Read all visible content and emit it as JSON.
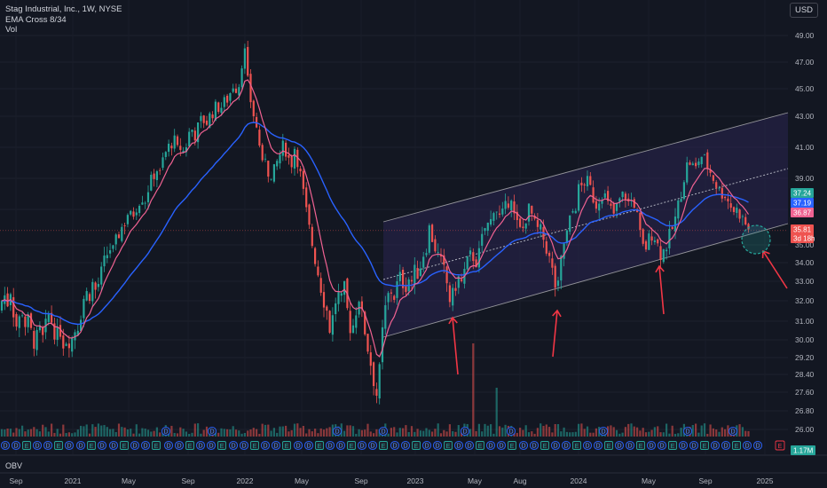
{
  "header": {
    "symbol_line": "Stag Industrial, Inc., 1W, NYSE",
    "indicator_1": "EMA Cross 8/34",
    "indicator_2": "Vol",
    "currency": "USD"
  },
  "obv_pane": {
    "label": "OBV",
    "value": "1.17M"
  },
  "colors": {
    "background": "#131722",
    "up": "#26a69a",
    "down": "#ef5350",
    "ema_fast": "#f06292",
    "ema_slow": "#2962ff",
    "channel": "#c8c8c8",
    "arrow": "#f23645",
    "channel_fill": "#2a2550"
  },
  "chart_data": {
    "type": "candlestick",
    "title": "Stag Industrial, Inc., 1W, NYSE",
    "ylim": [
      25.5,
      50
    ],
    "y_ticks": [
      "49.00",
      "47.00",
      "45.00",
      "43.00",
      "41.00",
      "39.00",
      "37.00",
      "35.00",
      "34.00",
      "33.00",
      "32.00",
      "31.00",
      "30.00",
      "29.20",
      "28.40",
      "27.60",
      "26.80",
      "26.00"
    ],
    "x_ticks": [
      "Sep",
      "2021",
      "May",
      "Sep",
      "2022",
      "May",
      "Sep",
      "2023",
      "May",
      "Aug",
      "2024",
      "May",
      "Sep",
      "2025"
    ],
    "price_labels": [
      {
        "text": "37.24",
        "color": "#26a69a"
      },
      {
        "text": "37.19",
        "color": "#2962ff"
      },
      {
        "text": "36.87",
        "color": "#f06292"
      },
      {
        "text": "35.81",
        "color": "#ef5350"
      },
      {
        "text": "3d 18h",
        "color": "#ef5350"
      }
    ],
    "last_close": 35.81,
    "close_series": [
      {
        "t": 0,
        "c": 31.5
      },
      {
        "t": 4,
        "c": 32.5
      },
      {
        "t": 8,
        "c": 31.8
      },
      {
        "t": 12,
        "c": 32.6
      },
      {
        "t": 16,
        "c": 31.2
      },
      {
        "t": 20,
        "c": 30.5
      },
      {
        "t": 24,
        "c": 31.8
      },
      {
        "t": 28,
        "c": 30.8
      },
      {
        "t": 32,
        "c": 31.0
      },
      {
        "t": 36,
        "c": 30.2
      },
      {
        "t": 40,
        "c": 29.8
      },
      {
        "t": 44,
        "c": 30.6
      },
      {
        "t": 48,
        "c": 30.0
      },
      {
        "t": 52,
        "c": 30.8
      },
      {
        "t": 56,
        "c": 31.5
      },
      {
        "t": 60,
        "c": 30.6
      },
      {
        "t": 64,
        "c": 30.2
      },
      {
        "t": 68,
        "c": 30.5
      },
      {
        "t": 72,
        "c": 29.8
      },
      {
        "t": 76,
        "c": 30.2
      },
      {
        "t": 80,
        "c": 29.9
      },
      {
        "t": 84,
        "c": 30.5
      },
      {
        "t": 88,
        "c": 30.8
      },
      {
        "t": 92,
        "c": 31.6
      },
      {
        "t": 96,
        "c": 32.5
      },
      {
        "t": 100,
        "c": 32.2
      },
      {
        "t": 104,
        "c": 32.9
      },
      {
        "t": 108,
        "c": 32.5
      },
      {
        "t": 112,
        "c": 33.0
      },
      {
        "t": 116,
        "c": 33.8
      },
      {
        "t": 120,
        "c": 34.4
      },
      {
        "t": 124,
        "c": 34.8
      },
      {
        "t": 128,
        "c": 34.6
      },
      {
        "t": 132,
        "c": 35.4
      },
      {
        "t": 136,
        "c": 35.9
      },
      {
        "t": 140,
        "c": 36.2
      },
      {
        "t": 144,
        "c": 36.8
      },
      {
        "t": 148,
        "c": 36.5
      },
      {
        "t": 152,
        "c": 37.0
      },
      {
        "t": 156,
        "c": 37.5
      },
      {
        "t": 160,
        "c": 37.8
      },
      {
        "t": 164,
        "c": 37.6
      },
      {
        "t": 168,
        "c": 38.6
      },
      {
        "t": 172,
        "c": 39.0
      },
      {
        "t": 176,
        "c": 39.7
      },
      {
        "t": 180,
        "c": 39.2
      },
      {
        "t": 184,
        "c": 40.3
      },
      {
        "t": 188,
        "c": 40.8
      },
      {
        "t": 192,
        "c": 41.2
      },
      {
        "t": 196,
        "c": 41.5
      },
      {
        "t": 200,
        "c": 40.8
      },
      {
        "t": 204,
        "c": 41.0
      },
      {
        "t": 208,
        "c": 40.6
      },
      {
        "t": 212,
        "c": 41.8
      },
      {
        "t": 216,
        "c": 42.2
      },
      {
        "t": 220,
        "c": 41.8
      },
      {
        "t": 224,
        "c": 42.4
      },
      {
        "t": 228,
        "c": 42.9
      },
      {
        "t": 232,
        "c": 42.5
      },
      {
        "t": 236,
        "c": 43.0
      },
      {
        "t": 240,
        "c": 43.3
      },
      {
        "t": 244,
        "c": 43.8
      },
      {
        "t": 248,
        "c": 43.5
      },
      {
        "t": 252,
        "c": 44.0
      },
      {
        "t": 256,
        "c": 44.2
      },
      {
        "t": 260,
        "c": 44.8
      },
      {
        "t": 264,
        "c": 45.5
      },
      {
        "t": 268,
        "c": 44.6
      },
      {
        "t": 272,
        "c": 46.8
      },
      {
        "t": 276,
        "c": 47.8
      },
      {
        "t": 280,
        "c": 45.0
      },
      {
        "t": 284,
        "c": 43.6
      },
      {
        "t": 288,
        "c": 42.5
      },
      {
        "t": 292,
        "c": 41.4
      },
      {
        "t": 296,
        "c": 39.6
      },
      {
        "t": 300,
        "c": 40.8
      },
      {
        "t": 304,
        "c": 38.5
      },
      {
        "t": 308,
        "c": 39.3
      },
      {
        "t": 312,
        "c": 40.0
      },
      {
        "t": 316,
        "c": 40.6
      },
      {
        "t": 320,
        "c": 41.2
      },
      {
        "t": 324,
        "c": 40.5
      },
      {
        "t": 328,
        "c": 39.8
      },
      {
        "t": 332,
        "c": 41.0
      },
      {
        "t": 336,
        "c": 40.0
      },
      {
        "t": 340,
        "c": 38.8
      },
      {
        "t": 344,
        "c": 37.2
      },
      {
        "t": 348,
        "c": 36.0
      },
      {
        "t": 352,
        "c": 35.0
      },
      {
        "t": 356,
        "c": 34.0
      },
      {
        "t": 360,
        "c": 33.1
      },
      {
        "t": 364,
        "c": 32.2
      },
      {
        "t": 368,
        "c": 31.6
      },
      {
        "t": 372,
        "c": 30.5
      },
      {
        "t": 376,
        "c": 31.4
      },
      {
        "t": 380,
        "c": 32.5
      },
      {
        "t": 384,
        "c": 31.8
      },
      {
        "t": 388,
        "c": 32.6
      },
      {
        "t": 392,
        "c": 31.3
      },
      {
        "t": 396,
        "c": 30.4
      },
      {
        "t": 400,
        "c": 31.2
      },
      {
        "t": 404,
        "c": 32.4
      },
      {
        "t": 408,
        "c": 31.2
      },
      {
        "t": 412,
        "c": 30.3
      },
      {
        "t": 416,
        "c": 29.3
      },
      {
        "t": 420,
        "c": 28.5
      },
      {
        "t": 424,
        "c": 27.4
      },
      {
        "t": 428,
        "c": 28.6
      },
      {
        "t": 432,
        "c": 31.0
      },
      {
        "t": 436,
        "c": 32.0
      },
      {
        "t": 440,
        "c": 32.6
      },
      {
        "t": 444,
        "c": 32.2
      },
      {
        "t": 448,
        "c": 32.9
      },
      {
        "t": 452,
        "c": 33.3
      },
      {
        "t": 456,
        "c": 32.6
      },
      {
        "t": 460,
        "c": 33.2
      },
      {
        "t": 464,
        "c": 33.0
      },
      {
        "t": 468,
        "c": 33.6
      },
      {
        "t": 472,
        "c": 33.4
      },
      {
        "t": 476,
        "c": 34.4
      },
      {
        "t": 480,
        "c": 34.8
      },
      {
        "t": 484,
        "c": 36.0
      },
      {
        "t": 488,
        "c": 35.2
      },
      {
        "t": 492,
        "c": 34.6
      },
      {
        "t": 496,
        "c": 34.1
      },
      {
        "t": 500,
        "c": 33.6
      },
      {
        "t": 504,
        "c": 32.8
      },
      {
        "t": 508,
        "c": 31.8
      },
      {
        "t": 512,
        "c": 32.6
      },
      {
        "t": 516,
        "c": 33.2
      },
      {
        "t": 520,
        "c": 32.9
      },
      {
        "t": 524,
        "c": 33.6
      },
      {
        "t": 528,
        "c": 34.2
      },
      {
        "t": 532,
        "c": 34.5
      },
      {
        "t": 536,
        "c": 34.0
      },
      {
        "t": 540,
        "c": 34.5
      },
      {
        "t": 544,
        "c": 35.5
      },
      {
        "t": 548,
        "c": 36.2
      },
      {
        "t": 552,
        "c": 36.0
      },
      {
        "t": 556,
        "c": 37.2
      },
      {
        "t": 560,
        "c": 37.0
      },
      {
        "t": 564,
        "c": 36.4
      },
      {
        "t": 568,
        "c": 36.9
      },
      {
        "t": 572,
        "c": 37.4
      },
      {
        "t": 576,
        "c": 38.0
      },
      {
        "t": 580,
        "c": 36.4
      },
      {
        "t": 584,
        "c": 36.0
      },
      {
        "t": 588,
        "c": 35.6
      },
      {
        "t": 592,
        "c": 36.5
      },
      {
        "t": 596,
        "c": 37.0
      },
      {
        "t": 600,
        "c": 36.6
      },
      {
        "t": 604,
        "c": 35.8
      },
      {
        "t": 608,
        "c": 35.9
      },
      {
        "t": 612,
        "c": 35.4
      },
      {
        "t": 616,
        "c": 34.8
      },
      {
        "t": 620,
        "c": 34.0
      },
      {
        "t": 624,
        "c": 33.2
      },
      {
        "t": 628,
        "c": 32.2
      },
      {
        "t": 632,
        "c": 34.0
      },
      {
        "t": 636,
        "c": 35.2
      },
      {
        "t": 640,
        "c": 35.8
      },
      {
        "t": 644,
        "c": 36.8
      },
      {
        "t": 648,
        "c": 37.0
      },
      {
        "t": 652,
        "c": 38.3
      },
      {
        "t": 656,
        "c": 38.5
      },
      {
        "t": 660,
        "c": 38.9
      },
      {
        "t": 664,
        "c": 38.6
      },
      {
        "t": 668,
        "c": 37.8
      },
      {
        "t": 672,
        "c": 37.3
      },
      {
        "t": 676,
        "c": 37.8
      },
      {
        "t": 680,
        "c": 38.2
      },
      {
        "t": 684,
        "c": 37.4
      },
      {
        "t": 688,
        "c": 37.0
      },
      {
        "t": 692,
        "c": 36.7
      },
      {
        "t": 696,
        "c": 37.3
      },
      {
        "t": 700,
        "c": 37.8
      },
      {
        "t": 704,
        "c": 38.0
      },
      {
        "t": 708,
        "c": 37.4
      },
      {
        "t": 712,
        "c": 37.6
      },
      {
        "t": 716,
        "c": 37.3
      },
      {
        "t": 720,
        "c": 35.9
      },
      {
        "t": 724,
        "c": 34.8
      },
      {
        "t": 728,
        "c": 34.9
      },
      {
        "t": 732,
        "c": 35.4
      },
      {
        "t": 736,
        "c": 35.8
      },
      {
        "t": 740,
        "c": 35.2
      },
      {
        "t": 744,
        "c": 34.5
      },
      {
        "t": 748,
        "c": 34.7
      },
      {
        "t": 752,
        "c": 35.1
      },
      {
        "t": 756,
        "c": 35.7
      },
      {
        "t": 760,
        "c": 36.2
      },
      {
        "t": 764,
        "c": 37.2
      },
      {
        "t": 768,
        "c": 38.2
      },
      {
        "t": 772,
        "c": 39.4
      },
      {
        "t": 776,
        "c": 40.2
      },
      {
        "t": 780,
        "c": 39.8
      },
      {
        "t": 784,
        "c": 39.6
      },
      {
        "t": 788,
        "c": 40.3
      },
      {
        "t": 792,
        "c": 40.5
      },
      {
        "t": 796,
        "c": 39.9
      },
      {
        "t": 800,
        "c": 39.5
      },
      {
        "t": 804,
        "c": 39.0
      },
      {
        "t": 808,
        "c": 38.5
      },
      {
        "t": 812,
        "c": 38.0
      },
      {
        "t": 816,
        "c": 38.1
      },
      {
        "t": 820,
        "c": 37.6
      },
      {
        "t": 824,
        "c": 37.2
      },
      {
        "t": 828,
        "c": 36.9
      },
      {
        "t": 832,
        "c": 37.0
      },
      {
        "t": 836,
        "c": 36.5
      },
      {
        "t": 840,
        "c": 36.2
      },
      {
        "t": 844,
        "c": 35.8
      }
    ]
  }
}
